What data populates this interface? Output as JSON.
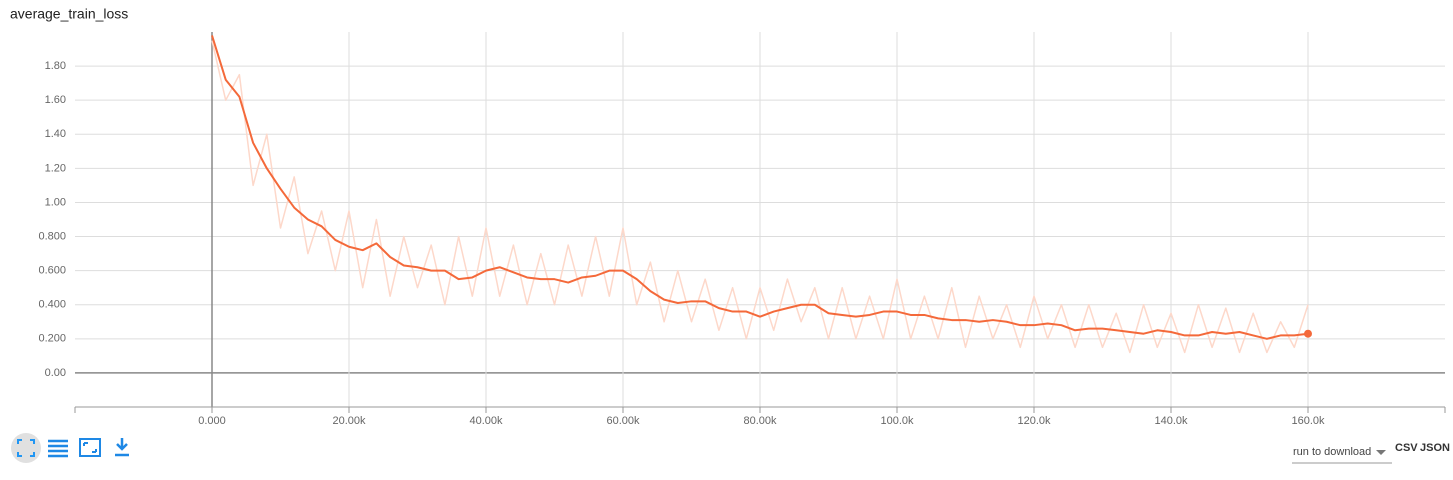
{
  "chart_data": {
    "type": "line",
    "title": "average_train_loss",
    "x": [
      0,
      2000,
      4000,
      6000,
      8000,
      10000,
      12000,
      14000,
      16000,
      18000,
      20000,
      22000,
      24000,
      26000,
      28000,
      30000,
      32000,
      34000,
      36000,
      38000,
      40000,
      42000,
      44000,
      46000,
      48000,
      50000,
      52000,
      54000,
      56000,
      58000,
      60000,
      62000,
      64000,
      66000,
      68000,
      70000,
      72000,
      74000,
      76000,
      78000,
      80000,
      82000,
      84000,
      86000,
      88000,
      90000,
      92000,
      94000,
      96000,
      98000,
      100000,
      102000,
      104000,
      106000,
      108000,
      110000,
      112000,
      114000,
      116000,
      118000,
      120000,
      122000,
      124000,
      126000,
      128000,
      130000,
      132000,
      134000,
      136000,
      138000,
      140000,
      142000,
      144000,
      146000,
      148000,
      150000,
      152000,
      154000,
      156000,
      158000,
      160000
    ],
    "series": [
      {
        "color": "#fdd8ca",
        "values": [
          1.95,
          1.6,
          1.75,
          1.1,
          1.4,
          0.85,
          1.15,
          0.7,
          0.95,
          0.6,
          0.95,
          0.5,
          0.9,
          0.45,
          0.8,
          0.5,
          0.75,
          0.4,
          0.8,
          0.45,
          0.85,
          0.45,
          0.75,
          0.4,
          0.7,
          0.4,
          0.75,
          0.45,
          0.8,
          0.45,
          0.85,
          0.4,
          0.65,
          0.3,
          0.6,
          0.3,
          0.55,
          0.25,
          0.5,
          0.2,
          0.5,
          0.25,
          0.55,
          0.3,
          0.5,
          0.2,
          0.5,
          0.2,
          0.45,
          0.2,
          0.55,
          0.2,
          0.45,
          0.2,
          0.5,
          0.15,
          0.45,
          0.2,
          0.4,
          0.15,
          0.45,
          0.2,
          0.4,
          0.15,
          0.4,
          0.15,
          0.35,
          0.12,
          0.4,
          0.15,
          0.35,
          0.12,
          0.4,
          0.15,
          0.38,
          0.12,
          0.35,
          0.12,
          0.3,
          0.15,
          0.4
        ]
      },
      {
        "color": "#f4693a",
        "values": [
          1.98,
          1.72,
          1.62,
          1.35,
          1.2,
          1.08,
          0.97,
          0.9,
          0.86,
          0.78,
          0.74,
          0.72,
          0.76,
          0.68,
          0.63,
          0.62,
          0.6,
          0.6,
          0.55,
          0.56,
          0.6,
          0.62,
          0.59,
          0.56,
          0.55,
          0.55,
          0.53,
          0.56,
          0.57,
          0.6,
          0.6,
          0.55,
          0.48,
          0.43,
          0.41,
          0.42,
          0.42,
          0.38,
          0.36,
          0.36,
          0.33,
          0.36,
          0.38,
          0.4,
          0.4,
          0.35,
          0.34,
          0.33,
          0.34,
          0.36,
          0.36,
          0.34,
          0.34,
          0.32,
          0.31,
          0.31,
          0.3,
          0.31,
          0.3,
          0.28,
          0.28,
          0.29,
          0.28,
          0.25,
          0.26,
          0.26,
          0.25,
          0.24,
          0.23,
          0.25,
          0.24,
          0.22,
          0.22,
          0.24,
          0.23,
          0.24,
          0.22,
          0.2,
          0.22,
          0.22,
          0.23
        ]
      }
    ],
    "xlim": [
      -20000,
      180000
    ],
    "ylim": [
      -0.2,
      2.0
    ],
    "xticks": [
      {
        "value": 0,
        "label": "0.000"
      },
      {
        "value": 20000,
        "label": "20.00k"
      },
      {
        "value": 40000,
        "label": "40.00k"
      },
      {
        "value": 60000,
        "label": "60.00k"
      },
      {
        "value": 80000,
        "label": "80.00k"
      },
      {
        "value": 100000,
        "label": "100.0k"
      },
      {
        "value": 120000,
        "label": "120.0k"
      },
      {
        "value": 140000,
        "label": "140.0k"
      },
      {
        "value": 160000,
        "label": "160.0k"
      }
    ],
    "yticks": [
      {
        "value": 0,
        "label": "0.00"
      },
      {
        "value": 0.2,
        "label": "0.200"
      },
      {
        "value": 0.4,
        "label": "0.400"
      },
      {
        "value": 0.6,
        "label": "0.600"
      },
      {
        "value": 0.8,
        "label": "0.800"
      },
      {
        "value": 1.0,
        "label": "1.00"
      },
      {
        "value": 1.2,
        "label": "1.20"
      },
      {
        "value": 1.4,
        "label": "1.40"
      },
      {
        "value": 1.6,
        "label": "1.60"
      },
      {
        "value": 1.8,
        "label": "1.80"
      }
    ],
    "grid": true
  },
  "controls": {
    "run_select": "run to download",
    "csv": "CSV",
    "json": "JSON"
  }
}
